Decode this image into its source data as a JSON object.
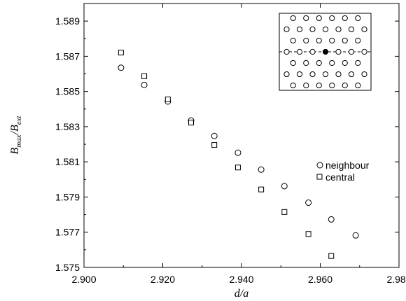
{
  "chart_data": {
    "type": "scatter",
    "xlabel": "d/a",
    "ylabel_main": "B",
    "ylabel_sub1": "max",
    "ylabel_slash": "/B",
    "ylabel_sub2": "ext",
    "xlim": [
      2.9,
      2.98
    ],
    "ylim": [
      1.575,
      1.59
    ],
    "x_ticks": [
      2.9,
      2.92,
      2.94,
      2.96,
      2.98
    ],
    "x_tick_labels": [
      "2.900",
      "2.920",
      "2.940",
      "2.960",
      "2.980"
    ],
    "y_ticks": [
      1.575,
      1.577,
      1.579,
      1.581,
      1.583,
      1.585,
      1.587,
      1.589
    ],
    "y_tick_labels": [
      "1.575",
      "1.577",
      "1.579",
      "1.581",
      "1.583",
      "1.585",
      "1.587",
      "1.589"
    ],
    "grid": false,
    "legend_position": "right",
    "series": [
      {
        "name": "neighbour",
        "marker": "circle",
        "x": [
          2.9094,
          2.9153,
          2.9213,
          2.9272,
          2.9331,
          2.9391,
          2.945,
          2.9509,
          2.957,
          2.9628,
          2.969
        ],
        "y": [
          1.58635,
          1.58537,
          1.58443,
          1.58335,
          1.58247,
          1.58152,
          1.58056,
          1.57962,
          1.57868,
          1.57773,
          1.57682
        ]
      },
      {
        "name": "central",
        "marker": "square",
        "x": [
          2.9094,
          2.9153,
          2.9213,
          2.9272,
          2.9331,
          2.9391,
          2.945,
          2.9509,
          2.957,
          2.9628
        ],
        "y": [
          1.58721,
          1.58587,
          1.58455,
          1.58323,
          1.58196,
          1.58068,
          1.57943,
          1.57815,
          1.5769,
          1.57565
        ]
      }
    ]
  }
}
